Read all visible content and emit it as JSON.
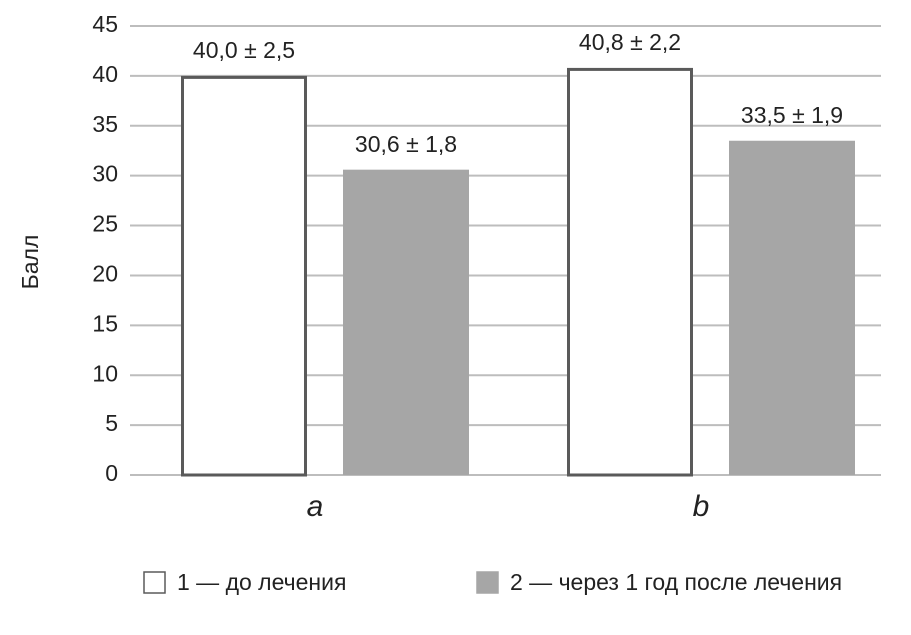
{
  "chart_data": {
    "type": "bar",
    "y_label": "Балл",
    "categories": [
      "a",
      "b"
    ],
    "series": [
      {
        "name": "1 — до лечения",
        "color": "#ffffff",
        "edge_color": "#5a5a5a",
        "values": [
          40.0,
          40.8
        ],
        "value_labels": [
          "40,0 ± 2,5",
          "40,8 ± 2,2"
        ]
      },
      {
        "name": "2 — через 1 год после лечения",
        "color": "#a6a6a6",
        "values": [
          30.6,
          33.5
        ],
        "value_labels": [
          "30,6 ± 1,8",
          "33,5 ± 1,9"
        ]
      }
    ],
    "ylim": [
      0,
      45
    ],
    "yticks": [
      0,
      5,
      10,
      15,
      20,
      25,
      30,
      35,
      40,
      45
    ],
    "grid": true
  }
}
